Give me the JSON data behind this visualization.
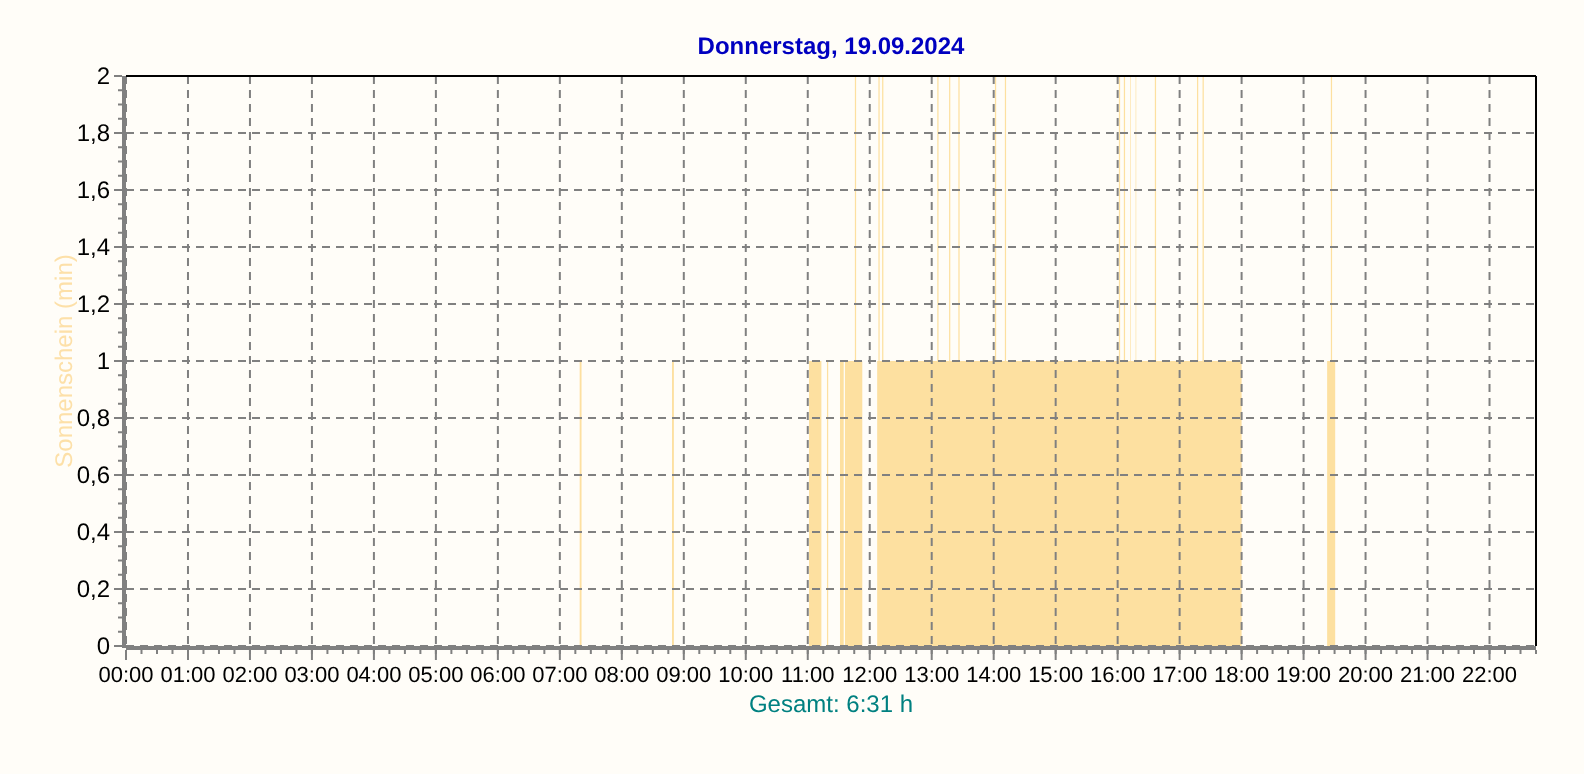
{
  "chart_data": {
    "type": "area",
    "title": "Donnerstag, 19.09.2024",
    "ylabel": "Sonnenschein  (min)",
    "annotations": [
      "Gesamt: 6:31 h"
    ],
    "x": [
      0,
      7.32,
      7.35,
      8.81,
      8.84,
      11.02,
      11.22,
      11.31,
      11.33,
      11.52,
      11.58,
      11.6,
      11.76,
      11.78,
      11.88,
      12.12,
      12.14,
      12.16,
      12.2,
      12.22,
      13.09,
      13.11,
      13.28,
      13.3,
      13.43,
      13.45,
      14.02,
      14.04,
      14.18,
      14.2,
      16.02,
      16.04,
      16.1,
      16.12,
      16.2,
      16.21,
      16.29,
      16.3,
      16.6,
      16.62,
      17.28,
      17.3,
      17.37,
      17.39,
      18,
      19.38,
      19.44,
      19.46,
      19.51,
      22.75
    ],
    "series": [
      {
        "color": "#fde0a0",
        "values": [
          0,
          1,
          0,
          1,
          0,
          1,
          0,
          1,
          0,
          1,
          0,
          1,
          2,
          1,
          0,
          1,
          2,
          1,
          2,
          1,
          2,
          1,
          2,
          1,
          2,
          1,
          2,
          1,
          2,
          1,
          2,
          1,
          2,
          1,
          2,
          1,
          2,
          1,
          2,
          1,
          2,
          1,
          2,
          1,
          0,
          1,
          2,
          1,
          0,
          0
        ]
      }
    ],
    "xlim": [
      0,
      22.75
    ],
    "xticks": [
      {
        "value": 0,
        "label": "00:00"
      },
      {
        "value": 1,
        "label": "01:00"
      },
      {
        "value": 2,
        "label": "02:00"
      },
      {
        "value": 3,
        "label": "03:00"
      },
      {
        "value": 4,
        "label": "04:00"
      },
      {
        "value": 5,
        "label": "05:00"
      },
      {
        "value": 6,
        "label": "06:00"
      },
      {
        "value": 7,
        "label": "07:00"
      },
      {
        "value": 8,
        "label": "08:00"
      },
      {
        "value": 9,
        "label": "09:00"
      },
      {
        "value": 10,
        "label": "10:00"
      },
      {
        "value": 11,
        "label": "11:00"
      },
      {
        "value": 12,
        "label": "12:00"
      },
      {
        "value": 13,
        "label": "13:00"
      },
      {
        "value": 14,
        "label": "14:00"
      },
      {
        "value": 15,
        "label": "15:00"
      },
      {
        "value": 16,
        "label": "16:00"
      },
      {
        "value": 17,
        "label": "17:00"
      },
      {
        "value": 18,
        "label": "18:00"
      },
      {
        "value": 19,
        "label": "19:00"
      },
      {
        "value": 20,
        "label": "20:00"
      },
      {
        "value": 21,
        "label": "21:00"
      },
      {
        "value": 22,
        "label": "22:00"
      }
    ],
    "ylim": [
      0,
      2
    ],
    "yticks": [
      0,
      {
        "value": 0.2,
        "label": "0,2"
      },
      {
        "value": 0.4,
        "label": "0,4"
      },
      {
        "value": 0.6,
        "label": "0,6"
      },
      {
        "value": 0.8,
        "label": "0,8"
      },
      1,
      {
        "value": 1.2,
        "label": "1,2"
      },
      {
        "value": 1.4,
        "label": "1,4"
      },
      {
        "value": 1.6,
        "label": "1,6"
      },
      {
        "value": 1.8,
        "label": "1,8"
      },
      2
    ],
    "grid": true,
    "line_style": "dashed"
  }
}
